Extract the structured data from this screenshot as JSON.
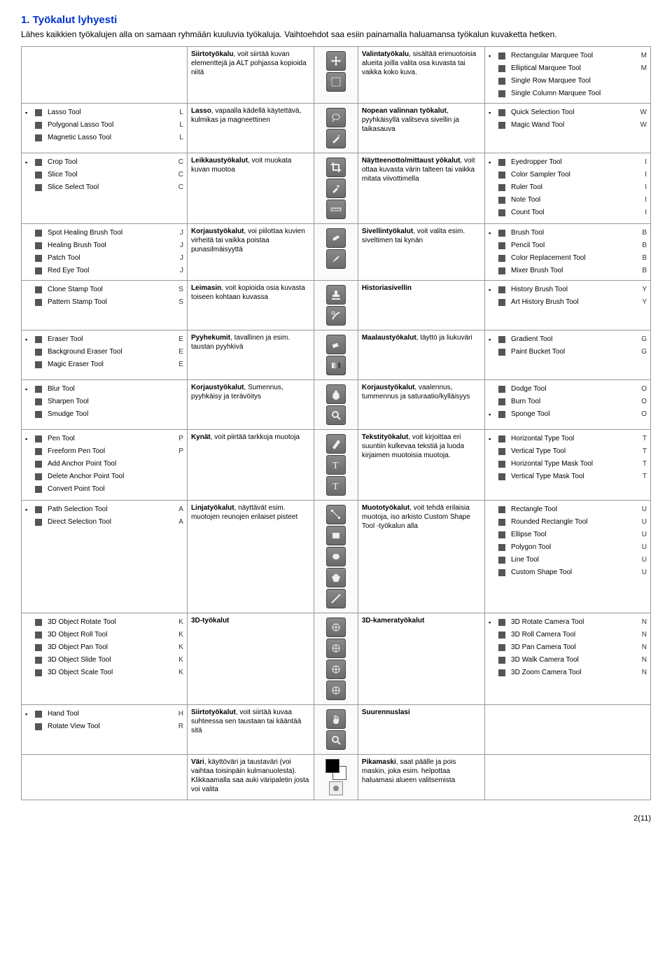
{
  "title": "1.  Työkalut lyhyesti",
  "intro": "Lähes kaikkien työkalujen alla on samaan ryhmään kuuluvia työkaluja. Vaihtoehdot saa esiin painamalla haluamansa työkalun kuvaketta hetken.",
  "pagenum": "2(11)",
  "rows": [
    {
      "left_menu": [],
      "left_desc_bold": "Siirtotyökalu",
      "left_desc": ", voit siirtää kuvan elementtejä ja ALT pohjassa kopioida niitä",
      "mid_icons": [
        "move",
        "marquee"
      ],
      "mid_desc_bold": "Valintatyökalu",
      "mid_desc": ", sisältää erimuotoisia alueita joilla valita osa kuvasta tai vaikka koko kuva.",
      "right_menu": [
        {
          "b": "▪",
          "label": "Rectangular Marquee Tool",
          "key": "M"
        },
        {
          "b": " ",
          "label": "Elliptical Marquee Tool",
          "key": "M"
        },
        {
          "b": " ",
          "label": "Single Row Marquee Tool",
          "key": ""
        },
        {
          "b": " ",
          "label": "Single Column Marquee Tool",
          "key": ""
        }
      ]
    },
    {
      "left_menu": [
        {
          "b": "▪",
          "label": "Lasso Tool",
          "key": "L"
        },
        {
          "b": " ",
          "label": "Polygonal Lasso Tool",
          "key": "L"
        },
        {
          "b": " ",
          "label": "Magnetic Lasso Tool",
          "key": "L"
        }
      ],
      "left_desc_bold": "Lasso",
      "left_desc": ", vapaalla kädellä käytettävä, kulmikas ja magneettinen",
      "mid_icons": [
        "lasso",
        "wand"
      ],
      "mid_desc_bold": "Nopean valinnan työkalut",
      "mid_desc": ", pyyhkäisyllä valitseva sivellin ja taikasauva",
      "right_menu": [
        {
          "b": "▪",
          "label": "Quick Selection Tool",
          "key": "W"
        },
        {
          "b": " ",
          "label": "Magic Wand Tool",
          "key": "W"
        }
      ]
    },
    {
      "left_menu": [
        {
          "b": "▪",
          "label": "Crop Tool",
          "key": "C"
        },
        {
          "b": " ",
          "label": "Slice Tool",
          "key": "C"
        },
        {
          "b": " ",
          "label": "Slice Select Tool",
          "key": "C"
        }
      ],
      "left_desc_bold": "Leikkaustyökalut",
      "left_desc": ", voit muokata kuvan muotoa",
      "mid_icons": [
        "crop",
        "eyedrop",
        "ruler"
      ],
      "mid_desc_bold": "Näytteenotto/mittaust yökalut",
      "mid_desc": ", voit ottaa kuvasta värin talteen tai vaikka mitata viivottimella",
      "right_menu": [
        {
          "b": "▪",
          "label": "Eyedropper Tool",
          "key": "I"
        },
        {
          "b": " ",
          "label": "Color Sampler Tool",
          "key": "I"
        },
        {
          "b": " ",
          "label": "Ruler Tool",
          "key": "I"
        },
        {
          "b": " ",
          "label": "Note Tool",
          "key": "I"
        },
        {
          "b": " ",
          "label": "Count Tool",
          "key": "I"
        }
      ]
    },
    {
      "left_menu": [
        {
          "b": " ",
          "label": "Spot Healing Brush Tool",
          "key": "J"
        },
        {
          "b": " ",
          "label": "Healing Brush Tool",
          "key": "J"
        },
        {
          "b": " ",
          "label": "Patch Tool",
          "key": "J"
        },
        {
          "b": " ",
          "label": "Red Eye Tool",
          "key": "J"
        }
      ],
      "left_desc_bold": "Korjaustyökalut",
      "left_desc": ", voi piilottaa kuvien virheitä tai vaikka poistaa punasilmäisyyttä",
      "mid_icons": [
        "heal",
        "brush"
      ],
      "mid_desc_bold": "Sivellintyökalut",
      "mid_desc": ", voit valita esim. siveltimen tai kynän",
      "right_menu": [
        {
          "b": "▪",
          "label": "Brush Tool",
          "key": "B"
        },
        {
          "b": " ",
          "label": "Pencil Tool",
          "key": "B"
        },
        {
          "b": " ",
          "label": "Color Replacement Tool",
          "key": "B"
        },
        {
          "b": " ",
          "label": "Mixer Brush Tool",
          "key": "B"
        }
      ]
    },
    {
      "left_menu": [
        {
          "b": " ",
          "label": "Clone Stamp Tool",
          "key": "S"
        },
        {
          "b": " ",
          "label": "Pattern Stamp Tool",
          "key": "S"
        }
      ],
      "left_desc_bold": "Leimasin",
      "left_desc": ", voit kopioida osia kuvasta toiseen kohtaan kuvassa",
      "mid_icons": [
        "stamp",
        "history"
      ],
      "mid_desc_bold": "Historiasivellin",
      "mid_desc": "",
      "right_menu": [
        {
          "b": "▪",
          "label": "History Brush Tool",
          "key": "Y"
        },
        {
          "b": " ",
          "label": "Art History Brush Tool",
          "key": "Y"
        }
      ]
    },
    {
      "left_menu": [
        {
          "b": "▪",
          "label": "Eraser Tool",
          "key": "E"
        },
        {
          "b": " ",
          "label": "Background Eraser Tool",
          "key": "E"
        },
        {
          "b": " ",
          "label": "Magic Eraser Tool",
          "key": "E"
        }
      ],
      "left_desc_bold": "Pyyhekumit",
      "left_desc": ", tavallinen ja esim. taustan pyyhkivä",
      "mid_icons": [
        "eraser",
        "gradient"
      ],
      "mid_desc_bold": "Maalaustyökalut",
      "mid_desc": ", täyttö ja liukuväri",
      "right_menu": [
        {
          "b": "▪",
          "label": "Gradient Tool",
          "key": "G"
        },
        {
          "b": " ",
          "label": "Paint Bucket Tool",
          "key": "G"
        }
      ]
    },
    {
      "left_menu": [
        {
          "b": "▪",
          "label": "Blur Tool",
          "key": ""
        },
        {
          "b": " ",
          "label": "Sharpen Tool",
          "key": ""
        },
        {
          "b": " ",
          "label": "Smudge Tool",
          "key": ""
        }
      ],
      "left_desc_bold": "Korjaustyökalut",
      "left_desc": ", Sumennus, pyyhkäisy ja terävöitys",
      "mid_icons": [
        "blur",
        "dodge"
      ],
      "mid_desc_bold": "Korjaustyökalut",
      "mid_desc": ", vaalennus, tummennus ja saturaatio/kylläisyys",
      "right_menu": [
        {
          "b": " ",
          "label": "Dodge Tool",
          "key": "O"
        },
        {
          "b": " ",
          "label": "Burn Tool",
          "key": "O"
        },
        {
          "b": "▪",
          "label": "Sponge Tool",
          "key": "O"
        }
      ]
    },
    {
      "left_menu": [
        {
          "b": "▪",
          "label": "Pen Tool",
          "key": "P"
        },
        {
          "b": " ",
          "label": "Freeform Pen Tool",
          "key": "P"
        },
        {
          "b": " ",
          "label": "Add Anchor Point Tool",
          "key": ""
        },
        {
          "b": " ",
          "label": "Delete Anchor Point Tool",
          "key": ""
        },
        {
          "b": " ",
          "label": "Convert Point Tool",
          "key": ""
        }
      ],
      "left_desc_bold": "Kynät",
      "left_desc": ", voit piirtää tarkkoja muotoja",
      "mid_icons": [
        "pen",
        "type",
        "type2"
      ],
      "mid_desc_bold": "Tekstityökalut",
      "mid_desc": ", voit kirjoittaa eri suuntiin kulkevaa tekstiä ja luoda kirjaimen muotoisia muotoja.",
      "right_menu": [
        {
          "b": "▪",
          "label": "Horizontal Type Tool",
          "key": "T"
        },
        {
          "b": " ",
          "label": "Vertical Type Tool",
          "key": "T"
        },
        {
          "b": " ",
          "label": "Horizontal Type Mask Tool",
          "key": "T"
        },
        {
          "b": " ",
          "label": "Vertical Type Mask Tool",
          "key": "T"
        }
      ]
    },
    {
      "left_menu": [
        {
          "b": "▪",
          "label": "Path Selection Tool",
          "key": "A"
        },
        {
          "b": " ",
          "label": "Direct Selection Tool",
          "key": "A"
        }
      ],
      "left_desc_bold": "Linjatyökalut",
      "left_desc": ", näyttävät esim. muotojen reunojen erilaiset pisteet",
      "mid_icons": [
        "path",
        "rect",
        "ellipse",
        "poly",
        "line"
      ],
      "mid_desc_bold": "Muototyökalut",
      "mid_desc": ", voit tehdä erilaisia muotoja, iso arkisto Custom Shape Tool -työkalun alla",
      "right_menu": [
        {
          "b": " ",
          "label": "Rectangle Tool",
          "key": "U"
        },
        {
          "b": " ",
          "label": "Rounded Rectangle Tool",
          "key": "U"
        },
        {
          "b": " ",
          "label": "Ellipse Tool",
          "key": "U"
        },
        {
          "b": " ",
          "label": "Polygon Tool",
          "key": "U"
        },
        {
          "b": " ",
          "label": "Line Tool",
          "key": "U"
        },
        {
          "b": " ",
          "label": "Custom Shape Tool",
          "key": "U"
        }
      ]
    },
    {
      "left_menu": [
        {
          "b": " ",
          "label": "3D Object Rotate Tool",
          "key": "K"
        },
        {
          "b": " ",
          "label": "3D Object Roll Tool",
          "key": "K"
        },
        {
          "b": " ",
          "label": "3D Object Pan Tool",
          "key": "K"
        },
        {
          "b": " ",
          "label": "3D Object Slide Tool",
          "key": "K"
        },
        {
          "b": " ",
          "label": "3D Object Scale Tool",
          "key": "K"
        }
      ],
      "left_desc_bold": "3D-työkalut",
      "left_desc": "",
      "mid_icons": [
        "3d1",
        "3d2",
        "3d3",
        "3d4"
      ],
      "mid_desc_bold": "3D-kameratyökalut",
      "mid_desc": "",
      "right_menu": [
        {
          "b": "▪",
          "label": "3D Rotate Camera Tool",
          "key": "N"
        },
        {
          "b": " ",
          "label": "3D Roll Camera Tool",
          "key": "N"
        },
        {
          "b": " ",
          "label": "3D Pan Camera Tool",
          "key": "N"
        },
        {
          "b": " ",
          "label": "3D Walk Camera Tool",
          "key": "N"
        },
        {
          "b": " ",
          "label": "3D Zoom Camera Tool",
          "key": "N"
        }
      ]
    },
    {
      "left_menu": [
        {
          "b": "▪",
          "label": "Hand Tool",
          "key": "H"
        },
        {
          "b": " ",
          "label": "Rotate View Tool",
          "key": "R"
        }
      ],
      "left_desc_bold": "Siirtotyökalut",
      "left_desc": ", voit siirtää kuvaa suhteessa sen taustaan tai kääntää sitä",
      "mid_icons": [
        "hand",
        "zoom"
      ],
      "mid_desc_bold": "Suurennuslasi",
      "mid_desc": "",
      "right_menu": []
    },
    {
      "left_menu": [],
      "left_desc_bold": "Väri",
      "left_desc": ", käyttöväri ja taustaväri (voi vaihtaa toisinpäin kulmanuolesta). Klikkaamalla saa auki väripaletin josta voi valita",
      "mid_icons": [
        "swatch",
        "qm"
      ],
      "mid_desc_bold": "Pikamaski",
      "mid_desc": ", saat päälle ja pois maskin, joka esim. helpottaa haluamasi alueen valitsemista",
      "right_menu": []
    }
  ]
}
